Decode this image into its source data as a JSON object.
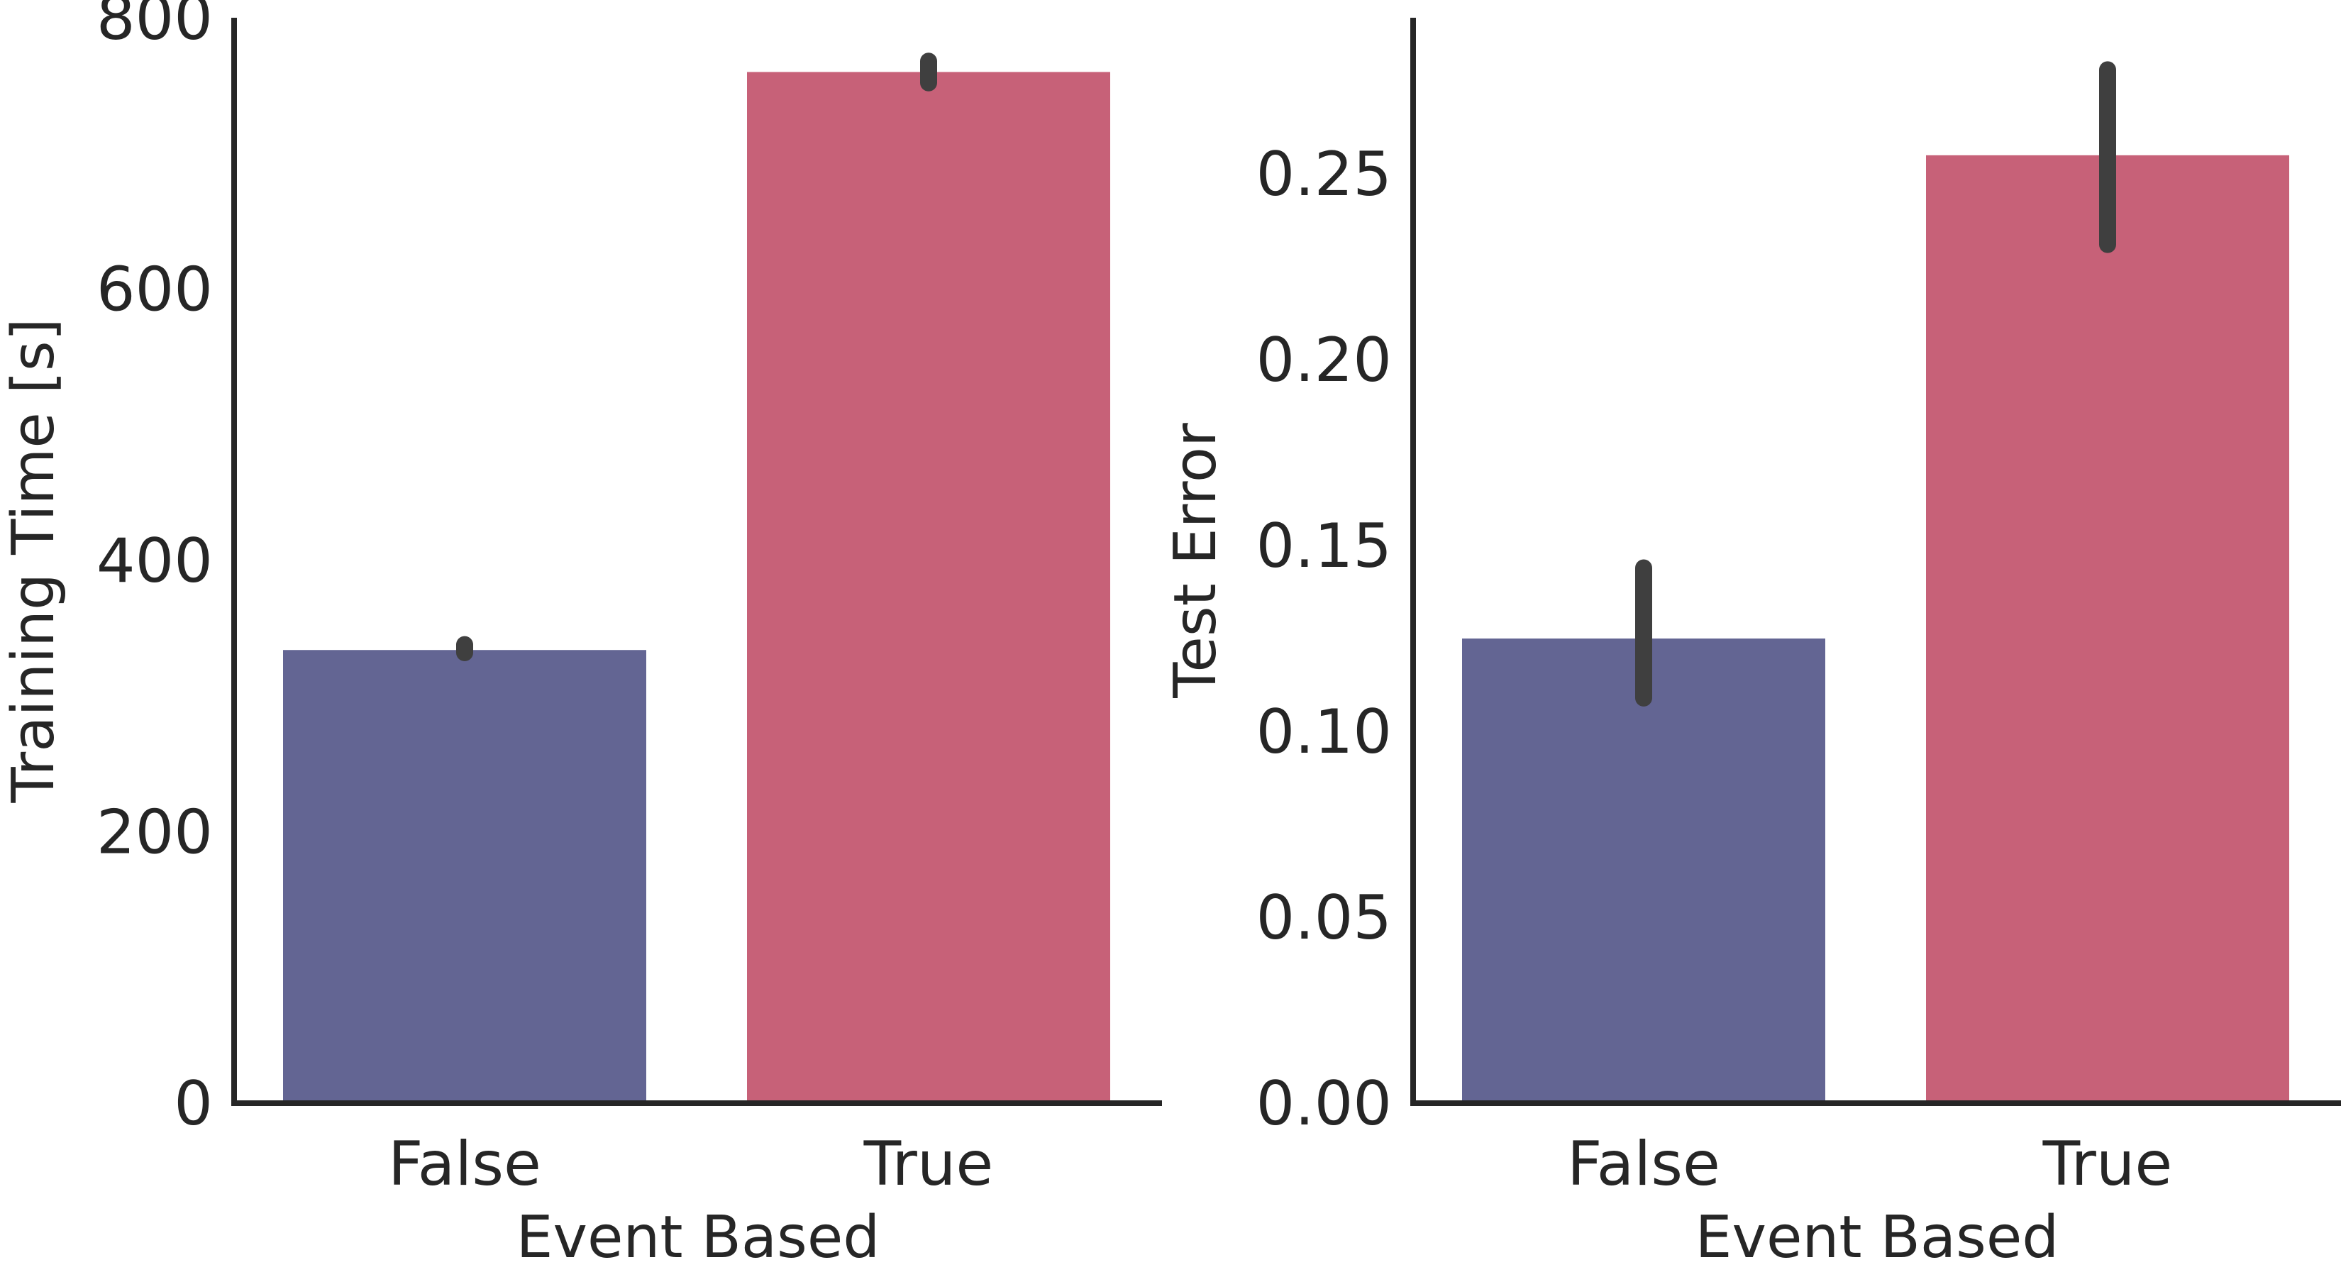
{
  "chart_data": [
    {
      "type": "bar",
      "xlabel": "Event Based",
      "ylabel": "Training Time [s]",
      "categories": [
        "False",
        "True"
      ],
      "values": [
        334,
        760
      ],
      "error": [
        [
          332,
          338
        ],
        [
          752,
          768
        ]
      ],
      "ylim": [
        0,
        800
      ],
      "yticks": [
        0,
        200,
        400,
        600,
        800
      ],
      "ytick_labels": [
        "0",
        "200",
        "400",
        "600",
        "800"
      ],
      "colors": [
        "#636593",
        "#c76178"
      ],
      "errorbar_color": "#3f3f3f",
      "grid": false
    },
    {
      "type": "bar",
      "xlabel": "Event Based",
      "ylabel": "Test Error",
      "categories": [
        "False",
        "True"
      ],
      "values": [
        0.125,
        0.255
      ],
      "error": [
        [
          0.109,
          0.144
        ],
        [
          0.231,
          0.278
        ]
      ],
      "ylim": [
        0,
        0.292
      ],
      "yticks": [
        0,
        0.05,
        0.1,
        0.15,
        0.2,
        0.25
      ],
      "ytick_labels": [
        "0.00",
        "0.05",
        "0.10",
        "0.15",
        "0.20",
        "0.25"
      ],
      "colors": [
        "#636593",
        "#c76178"
      ],
      "errorbar_color": "#3f3f3f",
      "grid": false
    }
  ]
}
